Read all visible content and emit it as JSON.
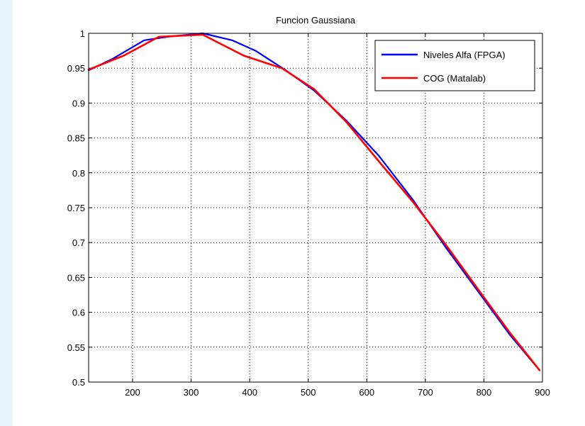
{
  "chart_data": {
    "type": "line",
    "title": "Funcion Gaussiana",
    "xlabel": "",
    "ylabel": "",
    "xlim": [
      125,
      900
    ],
    "ylim": [
      0.5,
      1.0
    ],
    "xticks": [
      200,
      300,
      400,
      500,
      600,
      700,
      800,
      900
    ],
    "xtick_labels": [
      "200",
      "300",
      "400",
      "500",
      "600",
      "700",
      "800",
      "900"
    ],
    "yticks": [
      0.5,
      0.55,
      0.6,
      0.65,
      0.7,
      0.75,
      0.8,
      0.85,
      0.9,
      0.95,
      1
    ],
    "ytick_labels": [
      "0.5",
      "0.55",
      "0.6",
      "0.65",
      "0.7",
      "0.75",
      "0.8",
      "0.85",
      "0.9",
      "0.95",
      "1"
    ],
    "grid": true,
    "legend_position": "top-right",
    "series": [
      {
        "name": "Niveles Alfa (FPGA)",
        "color": "#0000ff",
        "x": [
          125,
          165,
          220,
          260,
          320,
          370,
          410,
          460,
          510,
          565,
          620,
          680,
          735,
          790,
          845,
          895
        ],
        "y": [
          0.947,
          0.963,
          0.99,
          0.995,
          1.0,
          0.99,
          0.975,
          0.948,
          0.918,
          0.875,
          0.825,
          0.76,
          0.693,
          0.63,
          0.567,
          0.517
        ]
      },
      {
        "name": "COG (Matalab)",
        "color": "#ff0000",
        "x": [
          125,
          185,
          245,
          320,
          390,
          455,
          510,
          565,
          620,
          680,
          735,
          790,
          845,
          895
        ],
        "y": [
          0.948,
          0.968,
          0.995,
          0.998,
          0.968,
          0.95,
          0.92,
          0.873,
          0.817,
          0.757,
          0.697,
          0.633,
          0.57,
          0.517
        ]
      }
    ]
  }
}
